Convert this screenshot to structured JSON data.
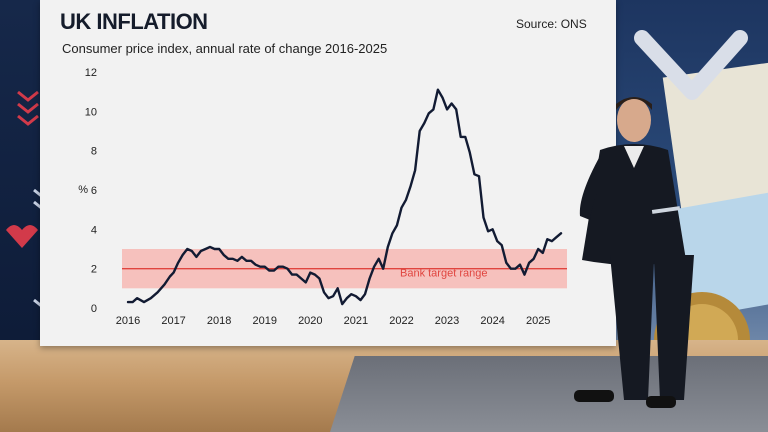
{
  "chart_data": {
    "type": "line",
    "title": "UK INFLATION",
    "subtitle": "Consumer price index, annual rate of change 2016-2025",
    "source": "Source: ONS",
    "ylabel": "%",
    "ylim": [
      0,
      12
    ],
    "yticks": [
      0,
      2,
      4,
      6,
      8,
      10,
      12
    ],
    "xlim": [
      2016,
      2025.5
    ],
    "xticks": [
      2016,
      2017,
      2018,
      2019,
      2020,
      2021,
      2022,
      2023,
      2024,
      2025
    ],
    "xtick_labels": [
      "2016",
      "2017",
      "2018",
      "2019",
      "2020",
      "2021",
      "2022",
      "2023",
      "2024",
      "2025"
    ],
    "band": {
      "label": "Bank target range",
      "low": 1,
      "high": 3,
      "target": 2
    },
    "series": [
      {
        "color": "#121b33",
        "x": [
          2016.0,
          2016.1,
          2016.2,
          2016.35,
          2016.5,
          2016.65,
          2016.8,
          2016.92,
          2017.0,
          2017.1,
          2017.2,
          2017.3,
          2017.4,
          2017.5,
          2017.6,
          2017.7,
          2017.8,
          2017.9,
          2018.0,
          2018.1,
          2018.2,
          2018.3,
          2018.4,
          2018.5,
          2018.6,
          2018.7,
          2018.8,
          2018.9,
          2019.0,
          2019.1,
          2019.2,
          2019.3,
          2019.4,
          2019.5,
          2019.6,
          2019.7,
          2019.8,
          2019.9,
          2020.0,
          2020.1,
          2020.2,
          2020.3,
          2020.4,
          2020.5,
          2020.6,
          2020.7,
          2020.8,
          2020.9,
          2021.0,
          2021.1,
          2021.2,
          2021.3,
          2021.4,
          2021.5,
          2021.6,
          2021.7,
          2021.8,
          2021.9,
          2022.0,
          2022.1,
          2022.2,
          2022.3,
          2022.4,
          2022.5,
          2022.6,
          2022.7,
          2022.8,
          2022.9,
          2023.0,
          2023.1,
          2023.2,
          2023.3,
          2023.4,
          2023.5,
          2023.6,
          2023.7,
          2023.8,
          2023.9,
          2024.0,
          2024.1,
          2024.2,
          2024.3,
          2024.4,
          2024.5,
          2024.6,
          2024.7,
          2024.8,
          2024.9,
          2025.0,
          2025.1,
          2025.2,
          2025.3,
          2025.4,
          2025.5
        ],
        "y": [
          0.3,
          0.3,
          0.5,
          0.3,
          0.5,
          0.8,
          1.2,
          1.6,
          1.8,
          2.3,
          2.7,
          3.0,
          2.9,
          2.6,
          2.9,
          3.0,
          3.1,
          3.0,
          3.0,
          2.7,
          2.5,
          2.5,
          2.4,
          2.6,
          2.4,
          2.4,
          2.2,
          2.1,
          2.1,
          1.9,
          1.9,
          2.1,
          2.1,
          2.0,
          1.7,
          1.7,
          1.5,
          1.3,
          1.8,
          1.7,
          1.5,
          0.8,
          0.5,
          0.6,
          1.0,
          0.2,
          0.5,
          0.7,
          0.6,
          0.4,
          0.7,
          1.5,
          2.1,
          2.5,
          2.0,
          3.1,
          3.8,
          4.2,
          5.1,
          5.5,
          6.2,
          7.0,
          9.0,
          9.4,
          9.9,
          10.1,
          11.1,
          10.7,
          10.1,
          10.4,
          10.1,
          8.7,
          8.7,
          7.9,
          6.8,
          6.7,
          4.6,
          3.9,
          4.0,
          3.4,
          3.2,
          2.3,
          2.0,
          2.0,
          2.2,
          1.7,
          2.3,
          2.5,
          3.0,
          2.8,
          3.5,
          3.4,
          3.6,
          3.8
        ]
      }
    ]
  }
}
